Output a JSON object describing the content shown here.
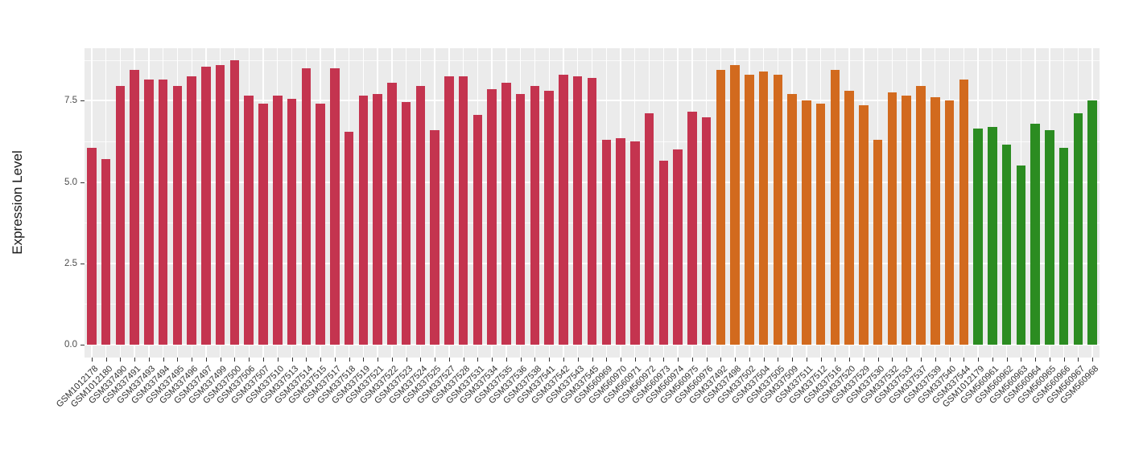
{
  "figure": {
    "background": "#FFFFFF",
    "panel_background": "#EBEBEB",
    "gridline_color": "#FFFFFF",
    "axis_text_color": "#4D4D4D",
    "axis_title_color": "#1A1A1A",
    "tick_color": "#333333"
  },
  "chart_data": {
    "type": "bar",
    "title": "",
    "xlabel": "",
    "ylabel": "Expression Level",
    "y_ticks": [
      0,
      2.5,
      5,
      7.5
    ],
    "y_tick_labels": [
      "0.0",
      "2.5",
      "5.0",
      "7.5"
    ],
    "y_minor_gridlines": [
      1.25,
      3.75,
      6.25,
      8.75
    ],
    "ylim": [
      -0.4,
      9.1
    ],
    "grid": true,
    "legend": "none",
    "categories": [
      "GSM1012178",
      "GSM1012180",
      "GSM337490",
      "GSM337491",
      "GSM337493",
      "GSM337494",
      "GSM337495",
      "GSM337496",
      "GSM337497",
      "GSM337499",
      "GSM337500",
      "GSM337506",
      "GSM337507",
      "GSM337510",
      "GSM337513",
      "GSM337514",
      "GSM337515",
      "GSM337517",
      "GSM337518",
      "GSM337519",
      "GSM337521",
      "GSM337522",
      "GSM337523",
      "GSM337524",
      "GSM337525",
      "GSM337527",
      "GSM337528",
      "GSM337531",
      "GSM337534",
      "GSM337535",
      "GSM337536",
      "GSM337538",
      "GSM337541",
      "GSM337542",
      "GSM337543",
      "GSM337545",
      "GSM560969",
      "GSM560970",
      "GSM560971",
      "GSM560972",
      "GSM560973",
      "GSM560974",
      "GSM560975",
      "GSM560976",
      "GSM337492",
      "GSM337498",
      "GSM337502",
      "GSM337504",
      "GSM337505",
      "GSM337509",
      "GSM337511",
      "GSM337512",
      "GSM337516",
      "GSM337520",
      "GSM337529",
      "GSM337530",
      "GSM337532",
      "GSM337533",
      "GSM337537",
      "GSM337539",
      "GSM337540",
      "GSM337544",
      "GSM1012179",
      "GSM560961",
      "GSM560962",
      "GSM560963",
      "GSM560964",
      "GSM560965",
      "GSM560966",
      "GSM560967",
      "GSM560968"
    ],
    "values": [
      6.05,
      5.7,
      7.95,
      8.45,
      8.15,
      8.15,
      7.95,
      8.25,
      8.55,
      8.6,
      8.75,
      7.65,
      7.4,
      7.65,
      7.55,
      8.5,
      7.4,
      8.5,
      6.55,
      7.65,
      7.7,
      8.05,
      7.45,
      7.95,
      6.6,
      8.25,
      8.25,
      7.05,
      7.85,
      8.05,
      7.7,
      7.95,
      7.8,
      8.3,
      8.25,
      8.2,
      6.3,
      6.35,
      6.25,
      7.1,
      5.65,
      6.0,
      7.15,
      7.0,
      8.45,
      8.6,
      8.3,
      8.4,
      8.3,
      7.7,
      7.5,
      7.4,
      8.45,
      7.8,
      7.35,
      6.3,
      7.75,
      7.65,
      7.95,
      7.6,
      7.5,
      8.15,
      6.65,
      6.7,
      6.15,
      5.5,
      6.8,
      6.6,
      6.05,
      7.1,
      7.5
    ],
    "color_groups": [
      {
        "color": "#C4344F",
        "from": 0,
        "to": 43
      },
      {
        "color": "#D26A1E",
        "from": 44,
        "to": 61
      },
      {
        "color": "#2B8C21",
        "from": 62,
        "to": 70
      }
    ]
  }
}
